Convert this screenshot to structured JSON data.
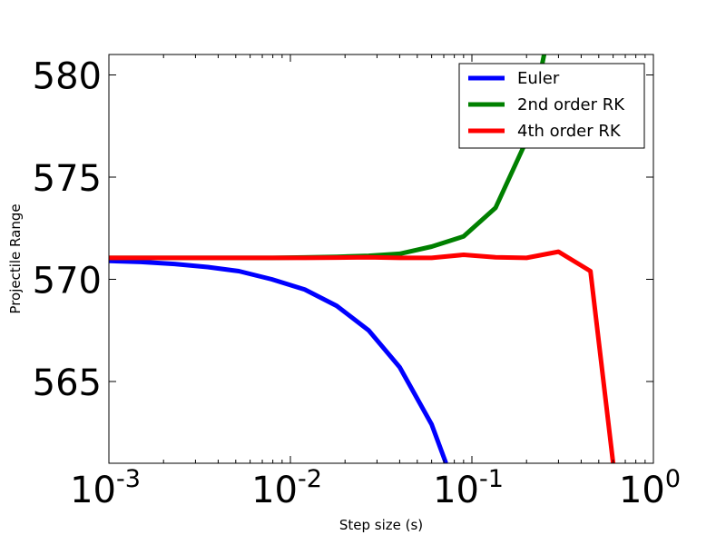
{
  "chart_data": {
    "type": "line",
    "title": "",
    "xlabel": "Step size (s)",
    "ylabel": "Projectile Range",
    "xscale": "log",
    "xlim": [
      0.001,
      1
    ],
    "ylim": [
      561,
      581
    ],
    "xticks": [
      {
        "value": 0.001,
        "base": "10",
        "exp": "-3"
      },
      {
        "value": 0.01,
        "base": "10",
        "exp": "-2"
      },
      {
        "value": 0.1,
        "base": "10",
        "exp": "-1"
      },
      {
        "value": 1,
        "base": "10",
        "exp": "0"
      }
    ],
    "yticks": [
      565,
      570,
      575,
      580
    ],
    "legend_position": "top-right",
    "grid": false,
    "series": [
      {
        "name": "Euler",
        "color": "#0000ff",
        "x": [
          0.001,
          0.0015,
          0.0023,
          0.0035,
          0.0052,
          0.0079,
          0.012,
          0.018,
          0.027,
          0.04,
          0.06,
          0.072
        ],
        "y": [
          570.9,
          570.85,
          570.75,
          570.6,
          570.4,
          570.0,
          569.5,
          568.7,
          567.5,
          565.7,
          562.9,
          561.0
        ]
      },
      {
        "name": "2nd order RK",
        "color": "#008000",
        "x": [
          0.001,
          0.002,
          0.004,
          0.008,
          0.012,
          0.018,
          0.027,
          0.04,
          0.06,
          0.09,
          0.135,
          0.2,
          0.25
        ],
        "y": [
          571.05,
          571.05,
          571.05,
          571.05,
          571.07,
          571.1,
          571.15,
          571.25,
          571.6,
          572.1,
          573.5,
          576.8,
          581.0
        ]
      },
      {
        "name": "4th order RK",
        "color": "#ff0000",
        "x": [
          0.001,
          0.002,
          0.004,
          0.008,
          0.012,
          0.018,
          0.027,
          0.04,
          0.06,
          0.09,
          0.135,
          0.2,
          0.3,
          0.45,
          0.6
        ],
        "y": [
          571.05,
          571.05,
          571.05,
          571.05,
          571.05,
          571.06,
          571.08,
          571.05,
          571.05,
          571.2,
          571.08,
          571.05,
          571.35,
          570.4,
          561.0
        ]
      }
    ]
  }
}
